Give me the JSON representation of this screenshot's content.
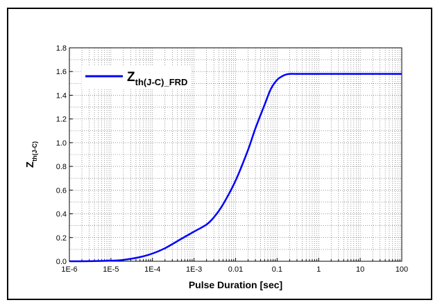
{
  "chart_data": {
    "type": "line",
    "xlabel": "Pulse Duration [sec]",
    "ylabel": {
      "main": "Z",
      "sub": "th(J-C)"
    },
    "x_scale": "log",
    "xlim": [
      1e-06,
      100
    ],
    "ylim": [
      0,
      1.8
    ],
    "x_tick_labels": [
      "1E-6",
      "1E-5",
      "1E-4",
      "1E-3",
      "0.01",
      "0.1",
      "1",
      "10",
      "100"
    ],
    "y_tick_labels": [
      "0.0",
      "0.2",
      "0.4",
      "0.6",
      "0.8",
      "1.0",
      "1.2",
      "1.4",
      "1.6",
      "1.8"
    ],
    "grid": true,
    "legend_position": "top-left",
    "series": [
      {
        "name": {
          "main": "Z",
          "sub": "th(J-C)_FRD"
        },
        "color": "#0000ff",
        "x": [
          1e-06,
          2e-06,
          5e-06,
          1e-05,
          2e-05,
          5e-05,
          0.0001,
          0.0002,
          0.0005,
          0.001,
          0.002,
          0.003,
          0.005,
          0.01,
          0.02,
          0.03,
          0.05,
          0.07,
          0.1,
          0.15,
          0.2,
          0.3,
          0.5,
          1,
          10,
          100
        ],
        "y": [
          0.0,
          0.0,
          0.002,
          0.005,
          0.012,
          0.035,
          0.065,
          0.11,
          0.19,
          0.25,
          0.31,
          0.37,
          0.48,
          0.68,
          0.94,
          1.12,
          1.32,
          1.45,
          1.53,
          1.57,
          1.58,
          1.58,
          1.58,
          1.58,
          1.58,
          1.58
        ]
      }
    ]
  }
}
